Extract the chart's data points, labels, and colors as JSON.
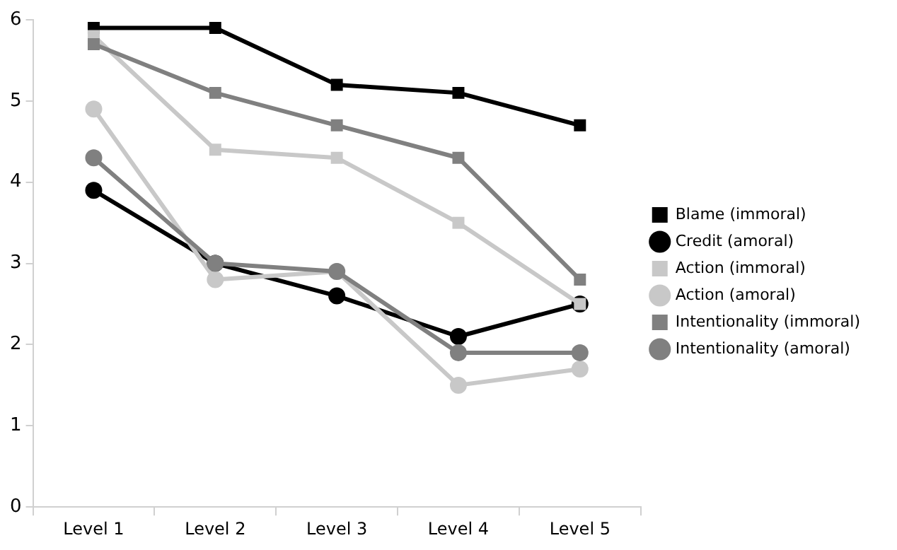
{
  "chart_data": {
    "type": "line",
    "categories": [
      "Level 1",
      "Level 2",
      "Level 3",
      "Level 4",
      "Level 5"
    ],
    "series": [
      {
        "name": "Blame (immoral)",
        "color": "#000000",
        "marker": "square",
        "values": [
          5.9,
          5.9,
          5.2,
          5.1,
          4.7
        ]
      },
      {
        "name": "Credit (amoral)",
        "color": "#000000",
        "marker": "circle",
        "values": [
          3.9,
          3.0,
          2.6,
          2.1,
          2.5
        ]
      },
      {
        "name": "Action (immoral)",
        "color": "#c8c8c8",
        "marker": "square",
        "values": [
          5.8,
          4.4,
          4.3,
          3.5,
          2.5
        ]
      },
      {
        "name": "Action (amoral)",
        "color": "#c8c8c8",
        "marker": "circle",
        "values": [
          4.9,
          2.8,
          2.9,
          1.5,
          1.7
        ]
      },
      {
        "name": "Intentionality (immoral)",
        "color": "#808080",
        "marker": "square",
        "values": [
          5.7,
          5.1,
          4.7,
          4.3,
          2.8
        ]
      },
      {
        "name": "Intentionality (amoral)",
        "color": "#808080",
        "marker": "circle",
        "values": [
          4.3,
          3.0,
          2.9,
          1.9,
          1.9
        ]
      }
    ],
    "ylim": [
      0,
      6
    ],
    "yticks": [
      0,
      1,
      2,
      3,
      4,
      5,
      6
    ],
    "grid": false,
    "legend": "right",
    "line_style": "solid"
  }
}
